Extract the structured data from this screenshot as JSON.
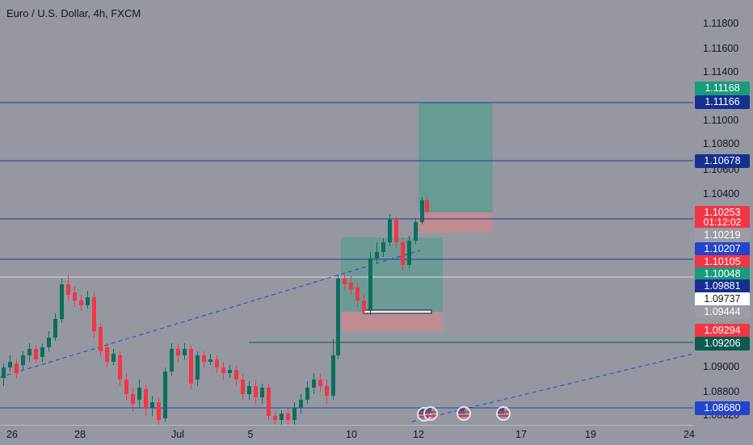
{
  "header": {
    "title": "Euro / U.S. Dollar, 4h, FXCM"
  },
  "colors": {
    "background": "#9598a1",
    "bull": "#0c6e5c",
    "bear": "#f23645",
    "hline": "#1e3a9e",
    "profit_zone": "#5f9c92",
    "loss_zone": "#c48b90"
  },
  "price_axis": {
    "ticks": [
      "1.11800",
      "1.11600",
      "1.11400",
      "1.11000",
      "1.10800",
      "1.10600",
      "1.10400",
      "1.09000",
      "1.08800",
      "1.08620"
    ],
    "tags": [
      {
        "value": "1.11168",
        "color": "#1a9b7c"
      },
      {
        "value": "1.11166",
        "color": "#15308f"
      },
      {
        "value": "1.10678",
        "color": "#15308f"
      },
      {
        "value": "1.10253",
        "color": "#f23645"
      },
      {
        "value": "01:12:02",
        "color": "#f23645"
      },
      {
        "value": "1.10219",
        "color": "#9b9da5"
      },
      {
        "value": "1.10207",
        "color": "#2445c9"
      },
      {
        "value": "1.10105",
        "color": "#f23645"
      },
      {
        "value": "1.10048",
        "color": "#1a9b7c"
      },
      {
        "value": "1.09881",
        "color": "#15308f"
      },
      {
        "value": "1.09737",
        "color": "#ffffff"
      },
      {
        "value": "1.09444",
        "color": "#9b9da5"
      },
      {
        "value": "1.09294",
        "color": "#f23645"
      },
      {
        "value": "1.09206",
        "color": "#0c5a50"
      },
      {
        "value": "1.08680",
        "color": "#2445c9"
      }
    ]
  },
  "time_axis": {
    "labels": [
      "26",
      "28",
      "Jul",
      "5",
      "10",
      "12",
      "17",
      "19",
      "24"
    ]
  },
  "events": {
    "icons": [
      "us-flag-icon",
      "us-flag-icon",
      "us-flag-icon",
      "us-flag-icon"
    ]
  }
}
